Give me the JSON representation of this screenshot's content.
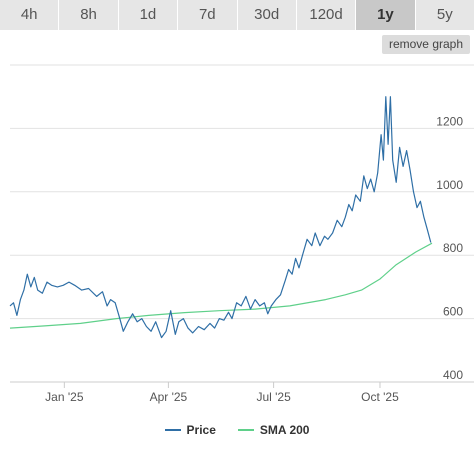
{
  "range_tabs": [
    {
      "label": "4h",
      "active": false
    },
    {
      "label": "8h",
      "active": false
    },
    {
      "label": "1d",
      "active": false
    },
    {
      "label": "7d",
      "active": false
    },
    {
      "label": "30d",
      "active": false
    },
    {
      "label": "120d",
      "active": false
    },
    {
      "label": "1y",
      "active": true
    },
    {
      "label": "5y",
      "active": false
    }
  ],
  "remove_graph_label": "remove graph",
  "colors": {
    "price": "#2f6fa6",
    "sma": "#5fd08a",
    "grid": "#e2e2e2",
    "axis_text": "#555555",
    "tab_bg": "#e6e6e6",
    "tab_active_bg": "#c8c8c8"
  },
  "legend": [
    {
      "label": "Price",
      "color": "#2f6fa6"
    },
    {
      "label": "SMA 200",
      "color": "#5fd08a"
    }
  ],
  "chart_data": {
    "type": "line",
    "title": "",
    "xlabel": "",
    "ylabel": "",
    "x_range": [
      "2024-11-15",
      "2025-11-15"
    ],
    "x_ticks": [
      {
        "label": "Jan '25",
        "date": "2025-01-01"
      },
      {
        "label": "Apr '25",
        "date": "2025-04-01"
      },
      {
        "label": "Jul '25",
        "date": "2025-07-01"
      },
      {
        "label": "Oct '25",
        "date": "2025-10-01"
      }
    ],
    "y_range": [
      400,
      1400
    ],
    "y_ticks": [
      400,
      600,
      800,
      1000,
      1200
    ],
    "grid": true,
    "y_axis_side": "right",
    "legend_position": "bottom-center",
    "series": [
      {
        "name": "Price",
        "points": [
          [
            "2024-11-15",
            640
          ],
          [
            "2024-11-18",
            650
          ],
          [
            "2024-11-21",
            610
          ],
          [
            "2024-11-24",
            660
          ],
          [
            "2024-11-27",
            690
          ],
          [
            "2024-11-30",
            740
          ],
          [
            "2024-12-03",
            700
          ],
          [
            "2024-12-06",
            730
          ],
          [
            "2024-12-09",
            690
          ],
          [
            "2024-12-13",
            680
          ],
          [
            "2024-12-17",
            715
          ],
          [
            "2024-12-21",
            705
          ],
          [
            "2024-12-26",
            700
          ],
          [
            "2024-12-31",
            705
          ],
          [
            "2025-01-05",
            715
          ],
          [
            "2025-01-10",
            705
          ],
          [
            "2025-01-16",
            690
          ],
          [
            "2025-01-22",
            695
          ],
          [
            "2025-01-29",
            670
          ],
          [
            "2025-02-03",
            685
          ],
          [
            "2025-02-07",
            640
          ],
          [
            "2025-02-10",
            660
          ],
          [
            "2025-02-14",
            650
          ],
          [
            "2025-02-18",
            600
          ],
          [
            "2025-02-21",
            560
          ],
          [
            "2025-02-25",
            590
          ],
          [
            "2025-03-01",
            615
          ],
          [
            "2025-03-05",
            590
          ],
          [
            "2025-03-09",
            600
          ],
          [
            "2025-03-13",
            575
          ],
          [
            "2025-03-17",
            560
          ],
          [
            "2025-03-21",
            590
          ],
          [
            "2025-03-26",
            540
          ],
          [
            "2025-03-30",
            560
          ],
          [
            "2025-04-03",
            625
          ],
          [
            "2025-04-07",
            550
          ],
          [
            "2025-04-10",
            590
          ],
          [
            "2025-04-14",
            600
          ],
          [
            "2025-04-18",
            570
          ],
          [
            "2025-04-22",
            555
          ],
          [
            "2025-04-27",
            575
          ],
          [
            "2025-05-02",
            565
          ],
          [
            "2025-05-07",
            585
          ],
          [
            "2025-05-11",
            570
          ],
          [
            "2025-05-15",
            600
          ],
          [
            "2025-05-19",
            595
          ],
          [
            "2025-05-23",
            620
          ],
          [
            "2025-05-26",
            600
          ],
          [
            "2025-05-30",
            650
          ],
          [
            "2025-06-03",
            640
          ],
          [
            "2025-06-07",
            670
          ],
          [
            "2025-06-11",
            630
          ],
          [
            "2025-06-15",
            660
          ],
          [
            "2025-06-19",
            640
          ],
          [
            "2025-06-23",
            650
          ],
          [
            "2025-06-26",
            615
          ],
          [
            "2025-06-29",
            640
          ],
          [
            "2025-07-03",
            660
          ],
          [
            "2025-07-07",
            675
          ],
          [
            "2025-07-11",
            720
          ],
          [
            "2025-07-14",
            755
          ],
          [
            "2025-07-17",
            740
          ],
          [
            "2025-07-20",
            790
          ],
          [
            "2025-07-23",
            760
          ],
          [
            "2025-07-26",
            800
          ],
          [
            "2025-07-30",
            850
          ],
          [
            "2025-08-03",
            830
          ],
          [
            "2025-08-06",
            870
          ],
          [
            "2025-08-10",
            830
          ],
          [
            "2025-08-14",
            860
          ],
          [
            "2025-08-17",
            850
          ],
          [
            "2025-08-21",
            870
          ],
          [
            "2025-08-25",
            910
          ],
          [
            "2025-08-29",
            890
          ],
          [
            "2025-09-01",
            920
          ],
          [
            "2025-09-04",
            960
          ],
          [
            "2025-09-07",
            940
          ],
          [
            "2025-09-10",
            990
          ],
          [
            "2025-09-14",
            970
          ],
          [
            "2025-09-17",
            1050
          ],
          [
            "2025-09-20",
            1010
          ],
          [
            "2025-09-23",
            1040
          ],
          [
            "2025-09-26",
            1000
          ],
          [
            "2025-09-29",
            1060
          ],
          [
            "2025-10-02",
            1180
          ],
          [
            "2025-10-04",
            1100
          ],
          [
            "2025-10-06",
            1300
          ],
          [
            "2025-10-08",
            1150
          ],
          [
            "2025-10-10",
            1300
          ],
          [
            "2025-10-12",
            1100
          ],
          [
            "2025-10-15",
            1030
          ],
          [
            "2025-10-18",
            1140
          ],
          [
            "2025-10-21",
            1080
          ],
          [
            "2025-10-24",
            1130
          ],
          [
            "2025-10-27",
            1070
          ],
          [
            "2025-10-30",
            1000
          ],
          [
            "2025-11-02",
            950
          ],
          [
            "2025-11-05",
            970
          ],
          [
            "2025-11-08",
            920
          ],
          [
            "2025-11-11",
            880
          ],
          [
            "2025-11-14",
            840
          ]
        ]
      },
      {
        "name": "SMA 200",
        "points": [
          [
            "2024-11-15",
            570
          ],
          [
            "2024-12-15",
            577
          ],
          [
            "2025-01-15",
            585
          ],
          [
            "2025-02-15",
            600
          ],
          [
            "2025-03-15",
            610
          ],
          [
            "2025-04-15",
            619
          ],
          [
            "2025-05-15",
            625
          ],
          [
            "2025-06-15",
            630
          ],
          [
            "2025-07-15",
            640
          ],
          [
            "2025-08-15",
            660
          ],
          [
            "2025-09-01",
            675
          ],
          [
            "2025-09-15",
            690
          ],
          [
            "2025-10-01",
            725
          ],
          [
            "2025-10-15",
            770
          ],
          [
            "2025-11-01",
            810
          ],
          [
            "2025-11-15",
            838
          ]
        ]
      }
    ]
  }
}
